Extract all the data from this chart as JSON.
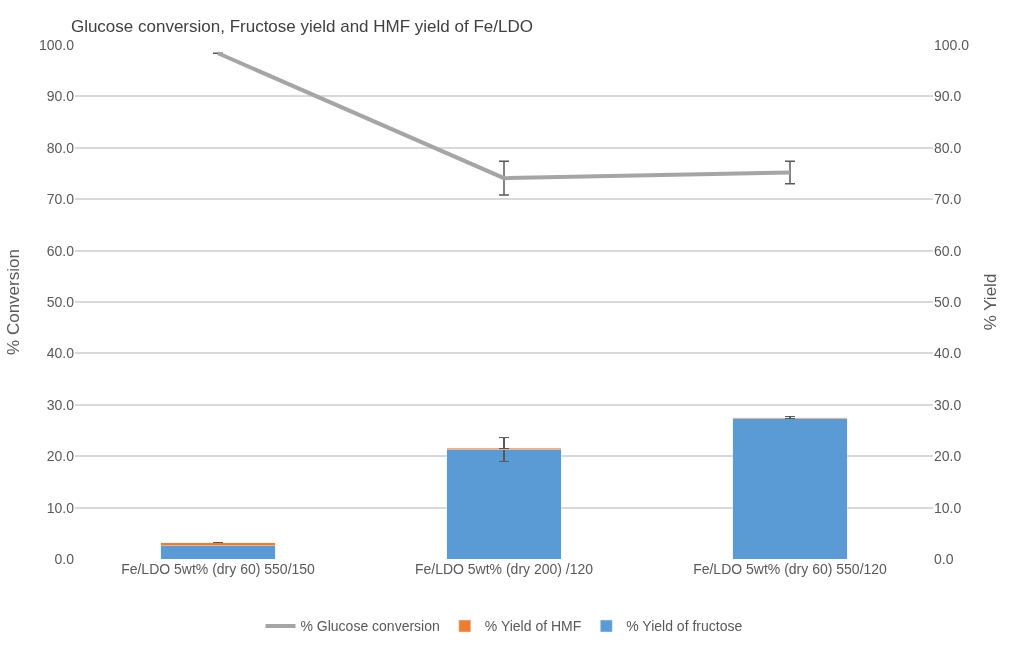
{
  "chart_data": {
    "type": "bar",
    "title": "Glucose conversion, Fructose yield and HMF yield of Fe/LDO",
    "ylabel": "% Conversion",
    "y2label": "% Yield",
    "categories": [
      "Fe/LDO 5wt% (dry 60) 550/150",
      "Fe/LDO 5wt% (dry 200) /120",
      "Fe/LDO 5wt% (dry 60) 550/120"
    ],
    "stacked": true,
    "series": [
      {
        "name": "% Yield of fructose",
        "color": "#5b9bd5",
        "values": [
          2.6,
          21.3,
          27.3
        ],
        "errors": [
          null,
          2.3,
          null
        ],
        "axis": "y2"
      },
      {
        "name": "% Yield of HMF",
        "color": "#ed7d31",
        "values": [
          0.6,
          0.2,
          0.2
        ],
        "errors": [
          null,
          null,
          0.2
        ],
        "axis": "y2"
      },
      {
        "name": "% Glucose conversion",
        "type": "line",
        "color": "#a5a5a5",
        "values": [
          98.4,
          74.1,
          75.2
        ],
        "errors": [
          null,
          3.3,
          2.2
        ],
        "marker": "none"
      }
    ],
    "ylim": [
      0,
      100
    ],
    "yticks": [
      {
        "value": 0,
        "label": "0.0"
      },
      {
        "value": 10,
        "label": "10.0"
      },
      {
        "value": 20,
        "label": "20.0"
      },
      {
        "value": 30,
        "label": "30.0"
      },
      {
        "value": 40,
        "label": "40.0"
      },
      {
        "value": 50,
        "label": "50.0"
      },
      {
        "value": 60,
        "label": "60.0"
      },
      {
        "value": 70,
        "label": "70.0"
      },
      {
        "value": 80,
        "label": "80.0"
      },
      {
        "value": 90,
        "label": "90.0"
      },
      {
        "value": 100,
        "label": "100.0"
      }
    ],
    "y2lim": [
      0,
      100
    ],
    "y2ticks": [
      {
        "value": 0,
        "label": "0.0"
      },
      {
        "value": 10,
        "label": "10.0"
      },
      {
        "value": 20,
        "label": "20.0"
      },
      {
        "value": 30,
        "label": "30.0"
      },
      {
        "value": 40,
        "label": "40.0"
      },
      {
        "value": 50,
        "label": "50.0"
      },
      {
        "value": 60,
        "label": "60.0"
      },
      {
        "value": 70,
        "label": "70.0"
      },
      {
        "value": 80,
        "label": "80.0"
      },
      {
        "value": 90,
        "label": "90.0"
      },
      {
        "value": 100,
        "label": "100.0"
      }
    ],
    "grid": "y",
    "legend": "bottom"
  }
}
